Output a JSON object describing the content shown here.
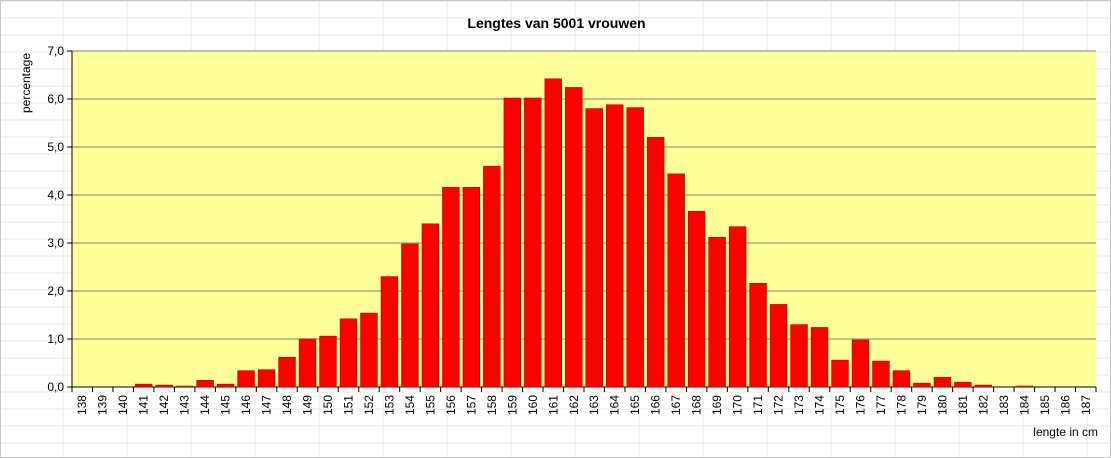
{
  "chart_data": {
    "type": "bar",
    "title": "Lengtes van 5001 vrouwen",
    "ylabel": "percentage",
    "xlabel": "lengte in cm",
    "ylim": [
      0,
      7
    ],
    "yticks": [
      "0,0",
      "1,0",
      "2,0",
      "3,0",
      "4,0",
      "5,0",
      "6,0",
      "7,0"
    ],
    "grid": true,
    "legend": "none",
    "colors": {
      "plot_background": "#ffff99",
      "bar_fill": "#ff0000",
      "bar_edge": "#b00000",
      "gridline": "#7f7f7f"
    },
    "categories": [
      "138",
      "139",
      "140",
      "141",
      "142",
      "143",
      "144",
      "145",
      "146",
      "147",
      "148",
      "149",
      "150",
      "151",
      "152",
      "153",
      "154",
      "155",
      "156",
      "157",
      "158",
      "159",
      "160",
      "161",
      "162",
      "163",
      "164",
      "165",
      "166",
      "167",
      "168",
      "169",
      "170",
      "171",
      "172",
      "173",
      "174",
      "175",
      "176",
      "177",
      "178",
      "179",
      "180",
      "181",
      "182",
      "183",
      "184",
      "185",
      "186",
      "187"
    ],
    "values": [
      0,
      0,
      0,
      0.06,
      0.04,
      0.02,
      0.14,
      0.06,
      0.34,
      0.36,
      0.62,
      1.0,
      1.06,
      1.42,
      1.54,
      2.3,
      2.98,
      3.4,
      4.16,
      4.16,
      4.6,
      6.02,
      6.02,
      6.42,
      6.24,
      5.8,
      5.88,
      5.82,
      5.2,
      4.44,
      3.66,
      3.12,
      3.34,
      2.16,
      1.72,
      1.3,
      1.24,
      0.56,
      0.98,
      0.54,
      0.34,
      0.08,
      0.2,
      0.1,
      0.04,
      0,
      0.02,
      0,
      0,
      0
    ]
  }
}
